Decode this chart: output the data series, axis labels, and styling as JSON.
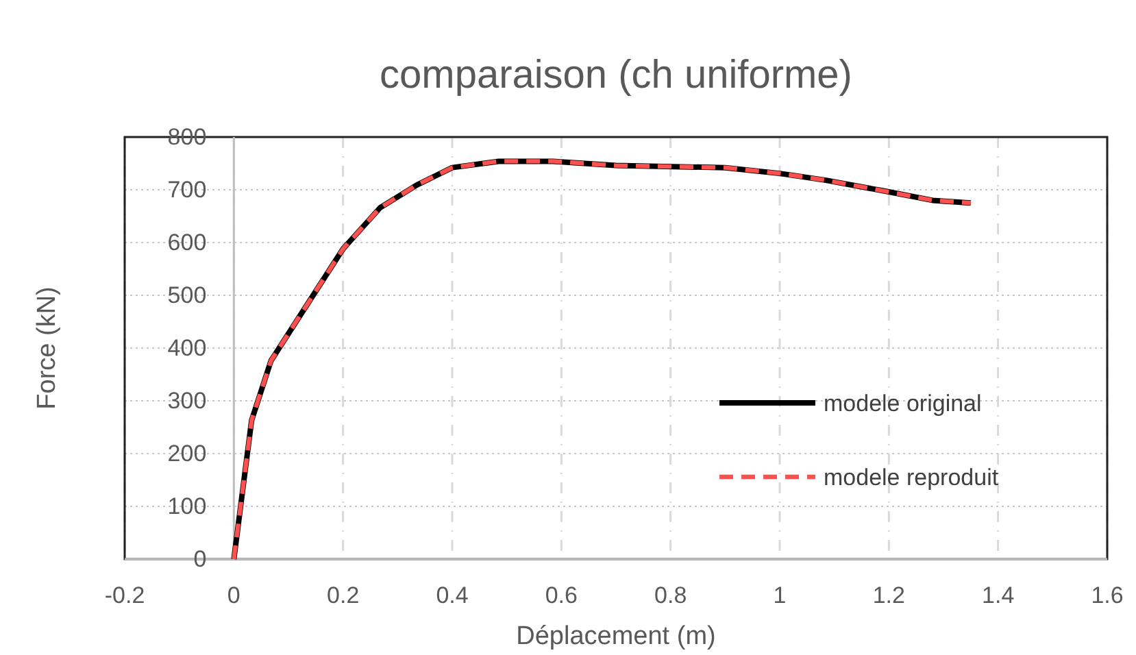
{
  "chart_data": {
    "type": "line",
    "title": "comparaison (ch uniforme)",
    "xlabel": "Déplacement (m)",
    "ylabel": "Force (kN)",
    "x": [
      0,
      0.0325,
      0.068,
      0.2,
      0.268,
      0.335,
      0.4,
      0.485,
      0.585,
      0.7,
      0.9,
      1.0,
      1.085,
      1.19,
      1.28,
      1.35
    ],
    "series": [
      {
        "name": "modele original",
        "color": "#000000",
        "line_style": "solid",
        "values": [
          0,
          263,
          376,
          588,
          666,
          709,
          742,
          754,
          754,
          746,
          742,
          731,
          718,
          698,
          680,
          675
        ]
      },
      {
        "name": "modele reproduit",
        "color": "#ff5050",
        "line_style": "dashed",
        "values": [
          0,
          263,
          376,
          588,
          666,
          709,
          742,
          754,
          754,
          746,
          742,
          731,
          718,
          698,
          680,
          675
        ]
      }
    ],
    "xlim": [
      -0.2,
      1.6
    ],
    "xticks": [
      -0.2,
      0,
      0.2,
      0.4,
      0.6,
      0.8,
      1,
      1.2,
      1.4,
      1.6
    ],
    "ylim": [
      0,
      800
    ],
    "yticks": [
      0,
      100,
      200,
      300,
      400,
      500,
      600,
      700,
      800
    ],
    "grid": true,
    "legend": "right",
    "marker": "none"
  }
}
